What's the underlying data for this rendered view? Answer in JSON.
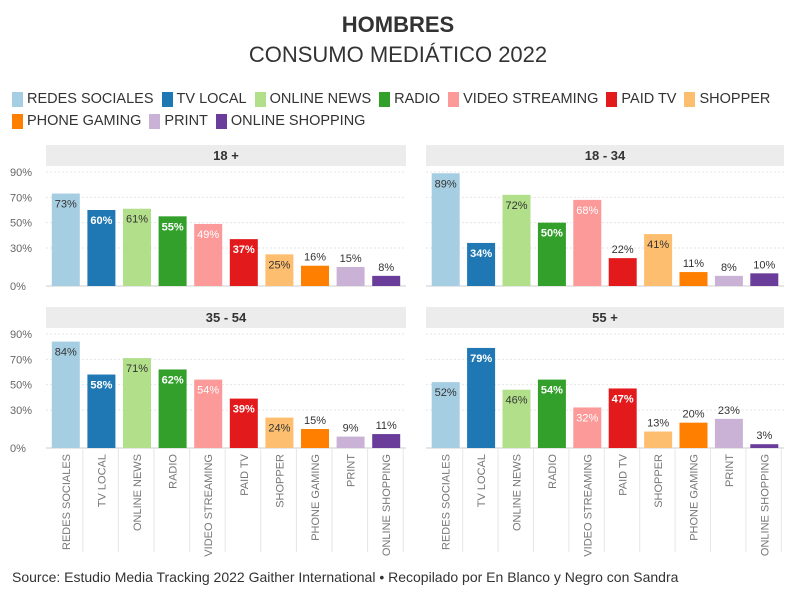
{
  "title": "HOMBRES",
  "subtitle": "CONSUMO MEDIÁTICO 2022",
  "legend": [
    {
      "label": "REDES SOCIALES",
      "color": "#a6cee3"
    },
    {
      "label": "TV LOCAL",
      "color": "#1f78b4"
    },
    {
      "label": "ONLINE NEWS",
      "color": "#b2df8a"
    },
    {
      "label": "RADIO",
      "color": "#33a02c"
    },
    {
      "label": "VIDEO STREAMING",
      "color": "#fb9a99"
    },
    {
      "label": "PAID TV",
      "color": "#e31a1c"
    },
    {
      "label": "SHOPPER",
      "color": "#fdbf6f"
    },
    {
      "label": "PHONE GAMING",
      "color": "#ff7f00"
    },
    {
      "label": "PRINT",
      "color": "#cab2d6"
    },
    {
      "label": "ONLINE SHOPPING",
      "color": "#6a3d9a"
    }
  ],
  "source": "Source: Estudio Media Tracking 2022 Gaither International • Recopilado por En Blanco y Negro con Sandra",
  "chart_data": [
    {
      "type": "bar",
      "title": "18 +",
      "categories": [
        "REDES SOCIALES",
        "TV LOCAL",
        "ONLINE NEWS",
        "RADIO",
        "VIDEO STREAMING",
        "PAID TV",
        "SHOPPER",
        "PHONE GAMING",
        "PRINT",
        "ONLINE SHOPPING"
      ],
      "values": [
        73,
        60,
        61,
        55,
        49,
        37,
        25,
        16,
        15,
        8
      ],
      "data_labels": [
        "73%",
        "60%",
        "61%",
        "55%",
        "49%",
        "37%",
        "25%",
        "16%",
        "15%",
        "8%"
      ],
      "yticks": [
        "0%",
        "30%",
        "50%",
        "70%",
        "90%"
      ],
      "ylim": [
        0,
        90
      ]
    },
    {
      "type": "bar",
      "title": "18 - 34",
      "categories": [
        "REDES SOCIALES",
        "TV LOCAL",
        "ONLINE NEWS",
        "RADIO",
        "VIDEO STREAMING",
        "PAID TV",
        "SHOPPER",
        "PHONE GAMING",
        "PRINT",
        "ONLINE SHOPPING"
      ],
      "values": [
        89,
        34,
        72,
        50,
        68,
        22,
        41,
        11,
        8,
        10
      ],
      "data_labels": [
        "89%",
        "34%",
        "72%",
        "50%",
        "68%",
        "22%",
        "41%",
        "11%",
        "8%",
        "10%"
      ],
      "ylim": [
        0,
        90
      ]
    },
    {
      "type": "bar",
      "title": "35 - 54",
      "categories": [
        "REDES SOCIALES",
        "TV LOCAL",
        "ONLINE NEWS",
        "RADIO",
        "VIDEO STREAMING",
        "PAID TV",
        "SHOPPER",
        "PHONE GAMING",
        "PRINT",
        "ONLINE SHOPPING"
      ],
      "values": [
        84,
        58,
        71,
        62,
        54,
        39,
        24,
        15,
        9,
        11
      ],
      "data_labels": [
        "84%",
        "58%",
        "71%",
        "62%",
        "54%",
        "39%",
        "24%",
        "15%",
        "9%",
        "11%"
      ],
      "yticks": [
        "0%",
        "30%",
        "50%",
        "70%",
        "90%"
      ],
      "ylim": [
        0,
        90
      ]
    },
    {
      "type": "bar",
      "title": "55 +",
      "categories": [
        "REDES SOCIALES",
        "TV LOCAL",
        "ONLINE NEWS",
        "RADIO",
        "VIDEO STREAMING",
        "PAID TV",
        "SHOPPER",
        "PHONE GAMING",
        "PRINT",
        "ONLINE SHOPPING"
      ],
      "values": [
        52,
        79,
        46,
        54,
        32,
        47,
        13,
        20,
        23,
        3
      ],
      "data_labels": [
        "52%",
        "79%",
        "46%",
        "54%",
        "32%",
        "47%",
        "13%",
        "20%",
        "23%",
        "3%"
      ],
      "ylim": [
        0,
        90
      ]
    }
  ]
}
